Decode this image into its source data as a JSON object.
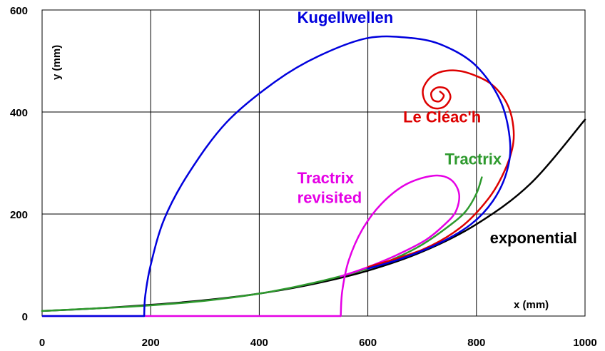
{
  "chart_data": {
    "type": "line",
    "xlabel": "x   (mm)",
    "ylabel": "y   (mm)",
    "xlim": [
      0,
      1000
    ],
    "ylim": [
      0,
      600
    ],
    "xticks": [
      "0",
      "200",
      "400",
      "600",
      "800",
      "1000"
    ],
    "yticks": [
      "0",
      "200",
      "400",
      "600"
    ],
    "grid": true,
    "series": [
      {
        "name": "exponential",
        "color": "#000000",
        "points": [
          [
            0,
            10
          ],
          [
            100,
            15
          ],
          [
            200,
            22
          ],
          [
            300,
            31
          ],
          [
            400,
            44
          ],
          [
            500,
            63
          ],
          [
            600,
            89
          ],
          [
            700,
            126
          ],
          [
            800,
            180
          ],
          [
            900,
            260
          ],
          [
            1000,
            385
          ]
        ]
      },
      {
        "name": "Tractrix",
        "color": "#2E9A2E",
        "points": [
          [
            0,
            10
          ],
          [
            100,
            15
          ],
          [
            200,
            21
          ],
          [
            300,
            30
          ],
          [
            400,
            44
          ],
          [
            500,
            65
          ],
          [
            600,
            93
          ],
          [
            650,
            113
          ],
          [
            700,
            140
          ],
          [
            750,
            177
          ],
          [
            780,
            205
          ],
          [
            800,
            240
          ],
          [
            810,
            272
          ]
        ]
      },
      {
        "name": "Tractrix revisited",
        "color": "#E500E5",
        "points": [
          [
            550,
            0
          ],
          [
            553,
            50
          ],
          [
            565,
            110
          ],
          [
            590,
            170
          ],
          [
            625,
            220
          ],
          [
            670,
            258
          ],
          [
            720,
            275
          ],
          [
            752,
            268
          ],
          [
            768,
            240
          ],
          [
            762,
            205
          ],
          [
            740,
            178
          ],
          [
            705,
            148
          ],
          [
            650,
            118
          ],
          [
            600,
            96
          ],
          [
            565,
            83
          ],
          [
            550,
            78
          ]
        ],
        "baseline": [
          [
            0,
            0
          ],
          [
            550,
            0
          ]
        ]
      },
      {
        "name": "Le Cléac'h",
        "color": "#DD0000",
        "points": [
          [
            600,
            96
          ],
          [
            700,
            130
          ],
          [
            770,
            173
          ],
          [
            822,
            230
          ],
          [
            852,
            285
          ],
          [
            868,
            340
          ],
          [
            865,
            390
          ],
          [
            850,
            428
          ],
          [
            823,
            458
          ],
          [
            780,
            478
          ],
          [
            745,
            481
          ],
          [
            718,
            470
          ],
          [
            702,
            446
          ],
          [
            705,
            422
          ],
          [
            720,
            408
          ],
          [
            740,
            410
          ],
          [
            752,
            428
          ],
          [
            745,
            445
          ],
          [
            728,
            448
          ],
          [
            717,
            438
          ],
          [
            720,
            424
          ],
          [
            732,
            421
          ],
          [
            740,
            432
          ],
          [
            733,
            440
          ]
        ]
      },
      {
        "name": "Kugellwellen",
        "color": "#0000DD",
        "points": [
          [
            188,
            0
          ],
          [
            190,
            40
          ],
          [
            200,
            100
          ],
          [
            225,
            190
          ],
          [
            270,
            280
          ],
          [
            340,
            380
          ],
          [
            430,
            460
          ],
          [
            510,
            510
          ],
          [
            600,
            545
          ],
          [
            680,
            545
          ],
          [
            740,
            530
          ],
          [
            800,
            490
          ],
          [
            845,
            420
          ],
          [
            862,
            340
          ],
          [
            855,
            280
          ],
          [
            830,
            225
          ],
          [
            790,
            180
          ],
          [
            730,
            142
          ],
          [
            660,
            112
          ],
          [
            600,
            93
          ]
        ],
        "baseline": [
          [
            0,
            0
          ],
          [
            188,
            0
          ]
        ]
      }
    ],
    "annotations": [
      {
        "text": "Kugellwellen",
        "x": 470,
        "y": 575,
        "color": "#0000DD"
      },
      {
        "text": "Le Cléac'h",
        "x": 665,
        "y": 380,
        "color": "#DD0000"
      },
      {
        "text": "Tractrix",
        "x": 742,
        "y": 297,
        "color": "#2E9A2E"
      },
      {
        "text": "Tractrix",
        "x": 470,
        "y": 260,
        "color": "#E500E5"
      },
      {
        "text": "revisited",
        "x": 470,
        "y": 222,
        "color": "#E500E5"
      },
      {
        "text": "exponential",
        "x": 905,
        "y": 143,
        "color": "#000000"
      }
    ]
  }
}
